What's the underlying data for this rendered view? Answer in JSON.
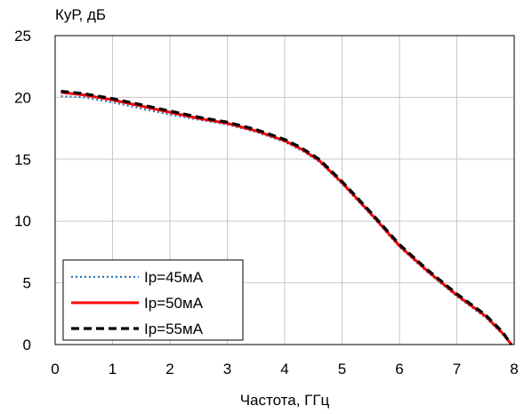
{
  "chart_data": {
    "type": "line",
    "title": "",
    "xlabel": "Частота, ГГц",
    "ylabel": "КуР, дБ",
    "xlim": [
      0,
      8
    ],
    "ylim": [
      0,
      25
    ],
    "xticks": [
      0,
      1,
      2,
      3,
      4,
      5,
      6,
      7,
      8
    ],
    "yticks": [
      0,
      5,
      10,
      15,
      20,
      25
    ],
    "xtick_labels": [
      "0",
      "1",
      "2",
      "3",
      "4",
      "5",
      "6",
      "7",
      "8"
    ],
    "ytick_labels": [
      "0",
      "5",
      "10",
      "15",
      "20",
      "25"
    ],
    "grid": true,
    "legend_position": "bottom-left",
    "series": [
      {
        "name": "Ip=45мА",
        "color": "#2e75b6",
        "style": "dotted",
        "x": [
          0.1,
          0.5,
          1,
          1.5,
          2,
          2.5,
          3,
          3.5,
          4,
          4.3,
          4.6,
          5,
          5.5,
          6,
          6.5,
          7,
          7.5,
          7.8,
          7.95
        ],
        "y": [
          20.1,
          20.0,
          19.6,
          19.1,
          18.6,
          18.2,
          17.8,
          17.2,
          16.4,
          15.7,
          14.8,
          13.0,
          10.5,
          7.9,
          5.8,
          3.9,
          2.2,
          0.8,
          0.0
        ]
      },
      {
        "name": "Ip=50мА",
        "color": "#ff0000",
        "style": "solid",
        "x": [
          0.1,
          0.5,
          1,
          1.5,
          2,
          2.5,
          3,
          3.5,
          4,
          4.3,
          4.6,
          5,
          5.5,
          6,
          6.5,
          7,
          7.5,
          7.8,
          7.95
        ],
        "y": [
          20.4,
          20.2,
          19.8,
          19.3,
          18.8,
          18.3,
          17.9,
          17.3,
          16.5,
          15.8,
          14.9,
          13.1,
          10.6,
          8.0,
          5.9,
          4.0,
          2.3,
          0.9,
          0.0
        ]
      },
      {
        "name": "Ip=55мА",
        "color": "#000000",
        "style": "dashed",
        "x": [
          0.1,
          0.5,
          1,
          1.5,
          2,
          2.5,
          3,
          3.5,
          4,
          4.3,
          4.6,
          5,
          5.5,
          6,
          6.5,
          7,
          7.5,
          7.8,
          7.95
        ],
        "y": [
          20.5,
          20.3,
          19.9,
          19.4,
          18.9,
          18.4,
          18.0,
          17.4,
          16.6,
          15.9,
          15.0,
          13.2,
          10.7,
          8.1,
          6.0,
          4.1,
          2.4,
          1.0,
          0.0
        ]
      }
    ]
  }
}
